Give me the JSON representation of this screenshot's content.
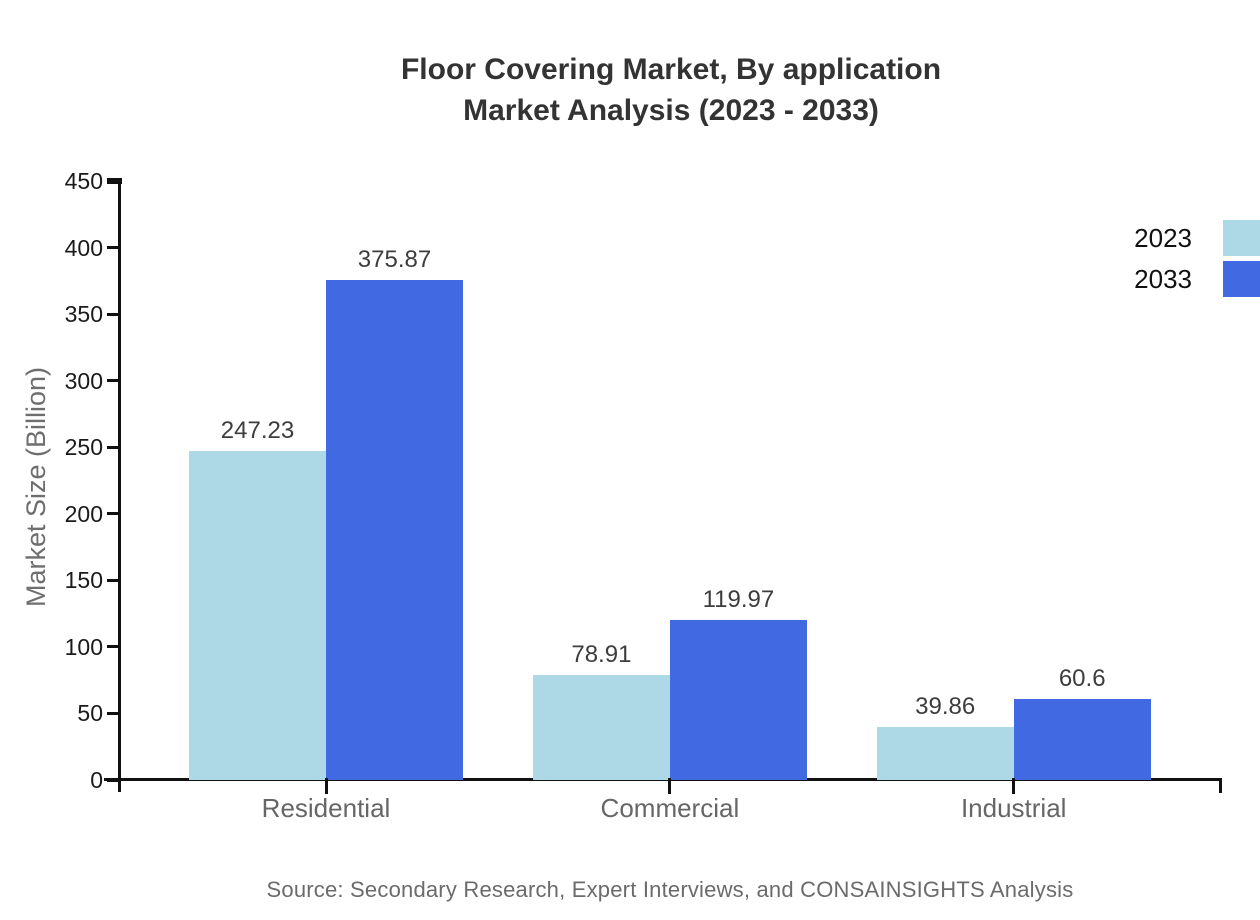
{
  "chart_data": {
    "type": "bar",
    "title_line1": "Floor Covering Market, By application",
    "title_line2": "Market Analysis (2023 - 2033)",
    "xlabel": "",
    "ylabel": "Market Size (Billion)",
    "categories": [
      "Residential",
      "Commercial",
      "Industrial"
    ],
    "series": [
      {
        "name": "2023",
        "color": "#ADD8E6",
        "values": [
          247.23,
          78.91,
          39.86
        ]
      },
      {
        "name": "2033",
        "color": "#4169E1",
        "values": [
          375.87,
          119.97,
          60.6
        ]
      }
    ],
    "value_labels": [
      "247.23",
      "375.87",
      "78.91",
      "119.97",
      "39.86",
      "60.6"
    ],
    "ylim": [
      0,
      450
    ],
    "ytick_step": 50,
    "yticks": [
      0,
      50,
      100,
      150,
      200,
      250,
      300,
      350,
      400,
      450
    ],
    "grid": false,
    "legend_position": "top-right",
    "axis_color": "#111111"
  },
  "source": {
    "text": "Source: Secondary Research, Expert Interviews, and CONSAINSIGHTS Analysis"
  }
}
